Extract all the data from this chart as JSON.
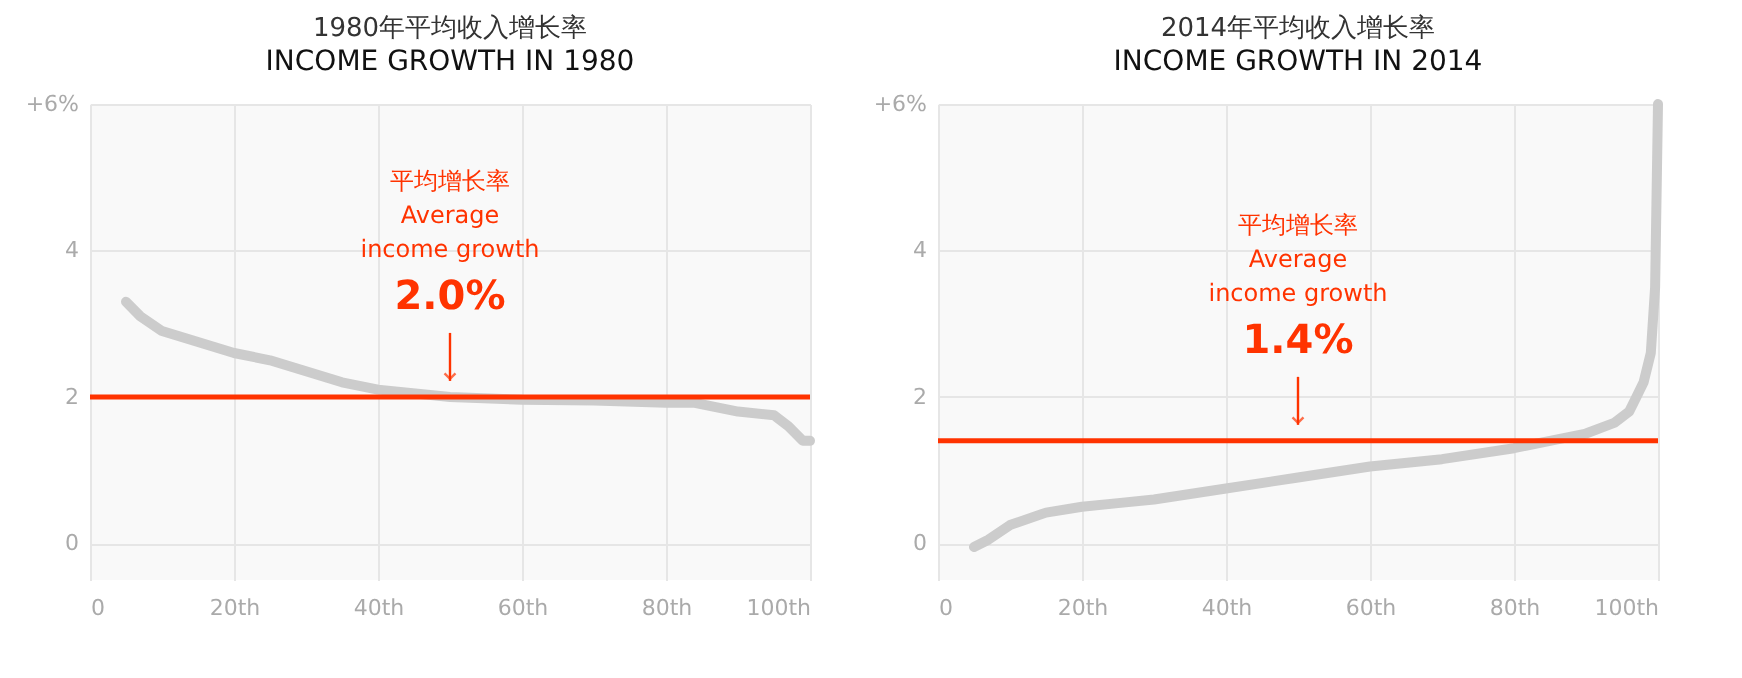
{
  "chart_data": [
    {
      "type": "line",
      "title": "1980年平均收入增长率",
      "subtitle": "INCOME GROWTH IN 1980",
      "x": [
        5,
        7,
        10,
        15,
        20,
        25,
        30,
        35,
        40,
        50,
        60,
        70,
        80,
        84,
        90,
        95,
        97,
        99,
        100
      ],
      "series": [
        {
          "color": "#cccccc",
          "values": [
            3.3,
            3.1,
            2.9,
            2.75,
            2.6,
            2.5,
            2.35,
            2.2,
            2.1,
            2.0,
            1.96,
            1.95,
            1.92,
            1.92,
            1.8,
            1.75,
            1.6,
            1.4,
            1.4
          ]
        }
      ],
      "xlim": [
        0,
        100
      ],
      "xticks": [
        0,
        {
          "value": 20,
          "label": "20th"
        },
        {
          "value": 40,
          "label": "40th"
        },
        {
          "value": 60,
          "label": "60th"
        },
        {
          "value": 80,
          "label": "80th"
        },
        {
          "value": 100,
          "label": "100th"
        }
      ],
      "ylim": [
        -0.5,
        6
      ],
      "yticks": [
        0,
        2,
        4,
        {
          "value": 6,
          "label": "+6%"
        }
      ],
      "ref_lines": [
        {
          "axis": "y",
          "value": 2.0,
          "label": "2.0%",
          "color": "#ff3300"
        }
      ],
      "annotations": [
        "平均增长率",
        "Average",
        "income growth"
      ],
      "grid": true
    },
    {
      "type": "line",
      "title": "2014年平均收入增长率",
      "subtitle": "INCOME GROWTH IN 2014",
      "x": [
        5,
        7,
        10,
        15,
        20,
        25,
        30,
        40,
        50,
        60,
        70,
        80,
        85,
        90,
        94,
        96,
        97,
        98,
        99,
        99.6,
        100
      ],
      "series": [
        {
          "color": "#cccccc",
          "values": [
            -0.05,
            0.05,
            0.25,
            0.42,
            0.5,
            0.55,
            0.6,
            0.75,
            0.9,
            1.05,
            1.15,
            1.3,
            1.4,
            1.5,
            1.65,
            1.8,
            2.0,
            2.2,
            2.6,
            3.5,
            6
          ]
        }
      ],
      "xlim": [
        0,
        100
      ],
      "xticks": [
        0,
        {
          "value": 20,
          "label": "20th"
        },
        {
          "value": 40,
          "label": "40th"
        },
        {
          "value": 60,
          "label": "60th"
        },
        {
          "value": 80,
          "label": "80th"
        },
        {
          "value": 100,
          "label": "100th"
        }
      ],
      "ylim": [
        -0.5,
        6
      ],
      "yticks": [
        0,
        2,
        4,
        {
          "value": 6,
          "label": "+6%"
        }
      ],
      "ref_lines": [
        {
          "axis": "y",
          "value": 1.4,
          "label": "1.4%",
          "color": "#ff3300"
        }
      ],
      "annotations": [
        "平均增长率",
        "Average",
        "income growth"
      ],
      "grid": true
    }
  ]
}
